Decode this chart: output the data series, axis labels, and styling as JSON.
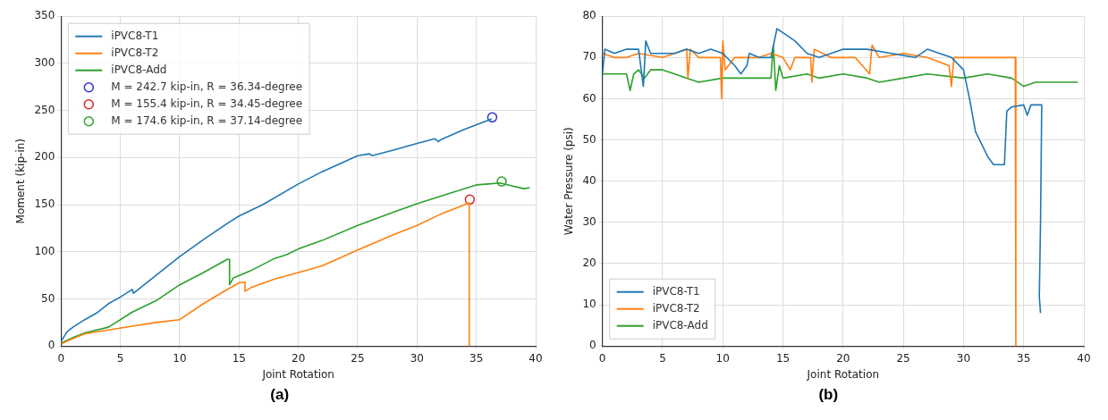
{
  "chart_data": [
    {
      "type": "line",
      "xlabel": "Joint Rotation",
      "ylabel": "Moment (kip-in)",
      "annotations": [
        "(a)"
      ],
      "xlim": [
        0,
        40
      ],
      "xticks": [
        0,
        5,
        10,
        15,
        20,
        25,
        30,
        35,
        40
      ],
      "ylim": [
        0,
        350
      ],
      "yticks": [
        0,
        50,
        100,
        150,
        200,
        250,
        300,
        350
      ],
      "grid": true,
      "legend": "top left",
      "marker": "none",
      "line_style": "solid",
      "series": [
        {
          "name": "iPVC8-T1",
          "color": "#1f77b4",
          "x": [
            0,
            0.5,
            1,
            2,
            3,
            4,
            5,
            6,
            6.1,
            6.3,
            8,
            10,
            12,
            14,
            15,
            17,
            20,
            22,
            25,
            26,
            26.2,
            28,
            30,
            31.5,
            31.8,
            32,
            34,
            36.3
          ],
          "values": [
            5,
            15,
            20,
            28,
            35,
            45,
            52,
            60,
            56,
            58,
            75,
            95,
            113,
            130,
            138,
            150,
            172,
            185,
            202,
            204,
            202,
            208,
            215,
            220,
            217,
            219,
            230,
            241
          ]
        },
        {
          "name": "iPVC8-T2",
          "color": "#ff7f0e",
          "x": [
            0,
            1,
            2,
            4,
            6,
            8,
            10,
            12,
            14,
            15,
            15.5,
            15.5,
            16,
            18,
            20,
            22,
            25,
            28,
            30,
            32,
            34.4,
            34.4
          ],
          "values": [
            2,
            8,
            13,
            17,
            21,
            25,
            28,
            45,
            60,
            67,
            68,
            58,
            62,
            71,
            78,
            85,
            102,
            118,
            128,
            140,
            152,
            0
          ]
        },
        {
          "name": "iPVC8-Add",
          "color": "#2ca02c",
          "x": [
            0,
            1,
            2,
            4,
            6,
            8,
            10,
            12,
            14,
            14.2,
            14.2,
            14.5,
            16,
            18,
            19,
            20,
            22,
            25,
            28,
            30,
            33,
            35,
            36,
            37,
            38,
            39,
            39.5
          ],
          "values": [
            3,
            9,
            14,
            20,
            36,
            48,
            65,
            78,
            92,
            92,
            65,
            72,
            80,
            93,
            97,
            103,
            112,
            128,
            142,
            151,
            163,
            171,
            172,
            173,
            170,
            167,
            168
          ]
        },
        {
          "name": "M = 242.7 kip-in, R = 36.34-degree",
          "type": "scatter",
          "marker": "circle",
          "color": "#3333cc",
          "x": [
            36.34
          ],
          "values": [
            242.7
          ]
        },
        {
          "name": "M = 155.4 kip-in, R = 34.45-degree",
          "type": "scatter",
          "marker": "circle",
          "color": "#d62728",
          "x": [
            34.45
          ],
          "values": [
            155.4
          ]
        },
        {
          "name": "M = 174.6 kip-in, R = 37.14-degree",
          "type": "scatter",
          "marker": "circle",
          "color": "#2ca02c",
          "x": [
            37.14
          ],
          "values": [
            174.6
          ]
        }
      ]
    },
    {
      "type": "line",
      "xlabel": "Joint Rotation",
      "ylabel": "Water Pressure (psi)",
      "annotations": [
        "(b)"
      ],
      "xlim": [
        0,
        40
      ],
      "xticks": [
        0,
        5,
        10,
        15,
        20,
        25,
        30,
        35,
        40
      ],
      "ylim": [
        0,
        80
      ],
      "yticks": [
        0,
        10,
        20,
        30,
        40,
        50,
        60,
        70,
        80
      ],
      "grid": true,
      "legend": "bottom left",
      "marker": "none",
      "line_style": "solid",
      "series": [
        {
          "name": "iPVC8-T1",
          "color": "#1f77b4",
          "x": [
            0,
            0.2,
            1,
            2,
            3,
            3.4,
            3.6,
            4,
            5,
            6,
            7,
            8,
            9,
            10,
            11,
            11.5,
            12,
            12.2,
            13,
            14,
            14.5,
            15,
            16,
            17,
            18,
            19,
            20,
            22,
            24,
            26,
            27,
            28,
            29,
            30,
            30.5,
            31,
            32,
            32.5,
            33.4,
            33.6,
            34,
            35,
            35.3,
            35.6,
            36.5,
            36.4,
            36.3,
            36.4
          ],
          "values": [
            66,
            72,
            71,
            72,
            72,
            63,
            74,
            71,
            71,
            71,
            72,
            71,
            72,
            71,
            68,
            66,
            68,
            71,
            70,
            70,
            77,
            76,
            74,
            71,
            70,
            71,
            72,
            72,
            71,
            70,
            72,
            71,
            70,
            67,
            60,
            52,
            46,
            44,
            44,
            57,
            58,
            58.5,
            56,
            58.5,
            58.5,
            30,
            12,
            8
          ]
        },
        {
          "name": "iPVC8-T2",
          "color": "#ff7f0e",
          "x": [
            0,
            1,
            2,
            3,
            5,
            6,
            7,
            7.1,
            7.3,
            8,
            9.8,
            9.9,
            10,
            10.2,
            11,
            13,
            14,
            15,
            15.6,
            16,
            17.3,
            17.4,
            17.6,
            19,
            21,
            22.2,
            22.4,
            23,
            25,
            27,
            28.8,
            29,
            29.2,
            30,
            32,
            34.3,
            34.35,
            34.4
          ],
          "values": [
            71,
            70,
            70,
            71,
            70,
            71,
            72,
            65,
            72,
            70,
            70,
            60,
            74,
            67,
            70,
            70,
            71,
            70,
            67,
            70,
            70,
            64,
            72,
            70,
            70,
            66,
            73,
            70,
            71,
            70,
            68,
            63,
            70,
            70,
            70,
            70,
            0,
            0
          ]
        },
        {
          "name": "iPVC8-Add",
          "color": "#2ca02c",
          "x": [
            0,
            2,
            2.3,
            2.6,
            3,
            3.5,
            4,
            5,
            6,
            7,
            8,
            10,
            12,
            14,
            14.2,
            14.4,
            14.7,
            15,
            17,
            18,
            20,
            22,
            23,
            25,
            27,
            30,
            32,
            34,
            35,
            36,
            38,
            39.5
          ],
          "values": [
            66,
            66,
            62,
            66,
            67,
            65,
            67,
            67,
            66,
            65,
            64,
            65,
            65,
            65,
            73,
            62,
            68,
            65,
            66,
            65,
            66,
            65,
            64,
            65,
            66,
            65,
            66,
            65,
            63,
            64,
            64,
            64
          ]
        }
      ]
    }
  ]
}
